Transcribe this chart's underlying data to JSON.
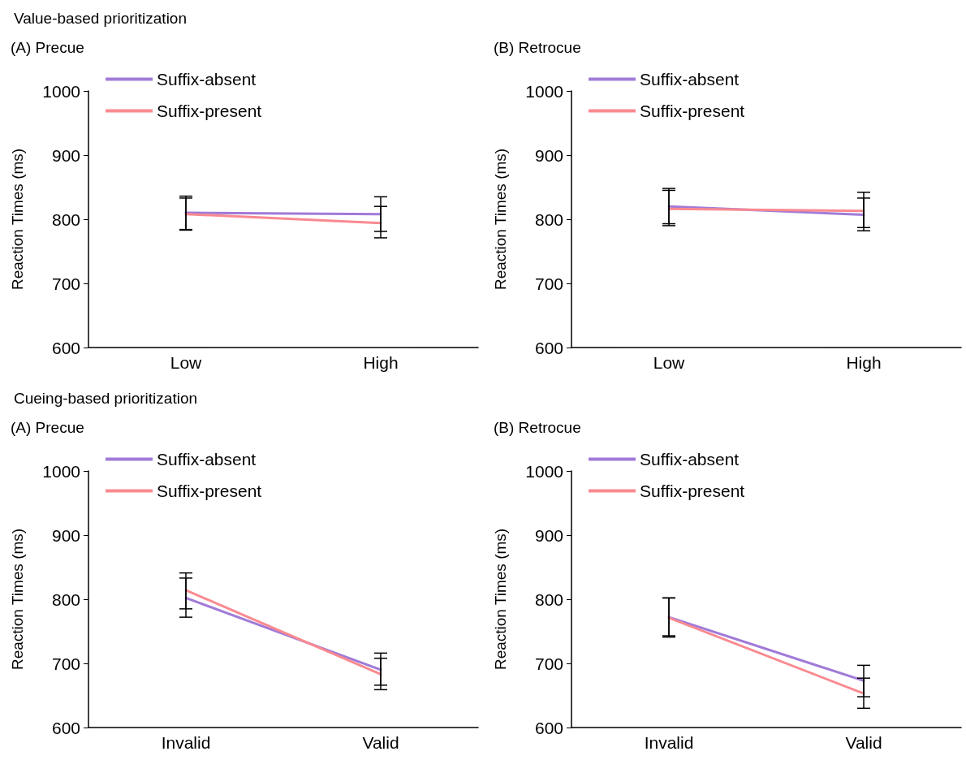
{
  "chart_data": [
    {
      "type": "line",
      "title": "Value-based prioritization",
      "subtitle": "(A) Precue",
      "ylabel": "Reaction Times (ms)",
      "categories": [
        "Low",
        "High"
      ],
      "ylim": [
        600,
        1000
      ],
      "yticks": [
        600,
        700,
        800,
        900,
        1000
      ],
      "grid": false,
      "legend": "top left",
      "marker": "none",
      "line_style": "solid",
      "series": [
        {
          "name": "Suffix-absent",
          "color": "#a07ad8",
          "values": [
            810,
            808
          ],
          "errors": [
            [
              784,
              836
            ],
            [
              781,
              835
            ]
          ]
        },
        {
          "name": "Suffix-present",
          "color": "#f98a90",
          "values": [
            808,
            794
          ],
          "errors": [
            [
              783,
              833
            ],
            [
              771,
              820
            ]
          ]
        }
      ]
    },
    {
      "type": "line",
      "subtitle": "(B) Retrocue",
      "ylabel": "Reaction Times (ms)",
      "categories": [
        "Low",
        "High"
      ],
      "ylim": [
        600,
        1000
      ],
      "yticks": [
        600,
        700,
        800,
        900,
        1000
      ],
      "grid": false,
      "legend": "top left",
      "marker": "none",
      "line_style": "solid",
      "series": [
        {
          "name": "Suffix-absent",
          "color": "#a07ad8",
          "values": [
            820,
            807
          ],
          "errors": [
            [
              790,
              848
            ],
            [
              782,
              833
            ]
          ]
        },
        {
          "name": "Suffix-present",
          "color": "#f98a90",
          "values": [
            816,
            813
          ],
          "errors": [
            [
              793,
              845
            ],
            [
              787,
              842
            ]
          ]
        }
      ]
    },
    {
      "type": "line",
      "title": "Cueing-based prioritization",
      "subtitle": "(A) Precue",
      "ylabel": "Reaction Times (ms)",
      "categories": [
        "Invalid",
        "Valid"
      ],
      "ylim": [
        600,
        1000
      ],
      "yticks": [
        600,
        700,
        800,
        900,
        1000
      ],
      "grid": false,
      "legend": "top left",
      "marker": "none",
      "line_style": "solid",
      "series": [
        {
          "name": "Suffix-absent",
          "color": "#a07ad8",
          "values": [
            802,
            690
          ],
          "errors": [
            [
              772,
              833
            ],
            [
              666,
              716
            ]
          ]
        },
        {
          "name": "Suffix-present",
          "color": "#f98a90",
          "values": [
            814,
            683
          ],
          "errors": [
            [
              785,
              841
            ],
            [
              659,
              708
            ]
          ]
        }
      ]
    },
    {
      "type": "line",
      "subtitle": "(B) Retrocue",
      "ylabel": "Reaction Times (ms)",
      "categories": [
        "Invalid",
        "Valid"
      ],
      "ylim": [
        600,
        1000
      ],
      "yticks": [
        600,
        700,
        800,
        900,
        1000
      ],
      "grid": false,
      "legend": "top left",
      "marker": "none",
      "line_style": "solid",
      "series": [
        {
          "name": "Suffix-absent",
          "color": "#a07ad8",
          "values": [
            772,
            673
          ],
          "errors": [
            [
              743,
              802
            ],
            [
              648,
              697
            ]
          ]
        },
        {
          "name": "Suffix-present",
          "color": "#f98a90",
          "values": [
            771,
            653
          ],
          "errors": [
            [
              741,
              802
            ],
            [
              630,
              677
            ]
          ]
        }
      ]
    }
  ]
}
